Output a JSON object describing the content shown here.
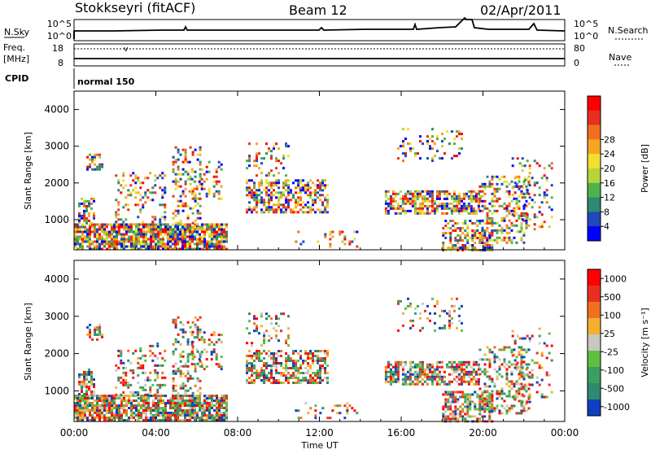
{
  "header": {
    "station": "Stokkseyri (fitACF)",
    "beam": "Beam 12",
    "date": "02/Apr/2011"
  },
  "top_panel": {
    "left_label": "N.Sky",
    "right_label": "N.Search",
    "left_ticks": [
      "10^5",
      "10^0"
    ],
    "right_ticks": [
      "10^5",
      "10^0"
    ]
  },
  "freq_panel": {
    "left_label_1": "Freq.",
    "left_label_2": "[MHz]",
    "left_ticks": [
      "18",
      "8"
    ],
    "right_ticks": [
      "80",
      "0"
    ],
    "right_label": "Nave"
  },
  "cpid": {
    "label": "CPID",
    "mode": "normal 150"
  },
  "chart_data": [
    {
      "type": "heatmap",
      "title": "Power",
      "ylabel": "Slant Range [km]",
      "xlabel": "",
      "x_ticks": [
        "00:00",
        "04:00",
        "08:00",
        "12:00",
        "16:00",
        "20:00",
        "00:00"
      ],
      "y_ticks": [
        "1000",
        "2000",
        "3000",
        "4000"
      ],
      "ylim": [
        180,
        4500
      ],
      "colorbar_label": "Power [dB]",
      "colorbar_ticks": [
        "4",
        "8",
        "12",
        "16",
        "20",
        "24",
        "28"
      ],
      "colorbar_colors": [
        "#0000ff",
        "#2048b8",
        "#2e8a70",
        "#4fb24f",
        "#b8d43a",
        "#f2e030",
        "#f5a623",
        "#f07020",
        "#e83020",
        "#ff0000"
      ]
    },
    {
      "type": "heatmap",
      "title": "Velocity",
      "ylabel": "Slant Range [km]",
      "xlabel": "Time UT",
      "x_ticks": [
        "00:00",
        "04:00",
        "08:00",
        "12:00",
        "16:00",
        "20:00",
        "00:00"
      ],
      "y_ticks": [
        "1000",
        "2000",
        "3000",
        "4000"
      ],
      "ylim": [
        180,
        4500
      ],
      "colorbar_label": "Velocity [m s⁻¹]",
      "colorbar_ticks": [
        "1000",
        "500",
        "100",
        "25",
        "-25",
        "-100",
        "-500",
        "-1000"
      ],
      "colorbar_colors": [
        "#1040c0",
        "#2e8a70",
        "#3aa060",
        "#5fc040",
        "#c8c8c0",
        "#f5b030",
        "#f07020",
        "#e83020",
        "#ff0000"
      ]
    }
  ]
}
